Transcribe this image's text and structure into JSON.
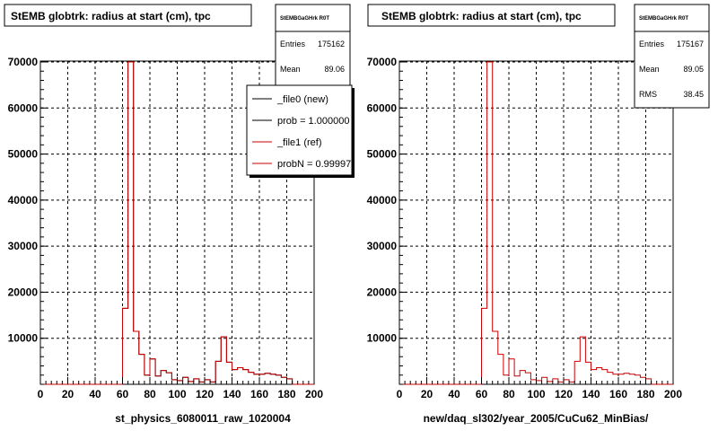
{
  "footer_text": "",
  "colors": {
    "new": "#000000",
    "ref": "#cc0000",
    "grid": "#000000"
  },
  "chart_data": [
    {
      "type": "histogram",
      "title": "StEMB globtrk: radius at start (cm), tpc",
      "xlabel": "st_physics_6080011_raw_1020004",
      "xlim": [
        0,
        200
      ],
      "ylim": [
        0,
        70000
      ],
      "xticks": [
        "0",
        "20",
        "40",
        "60",
        "80",
        "100",
        "120",
        "140",
        "160",
        "180",
        "200"
      ],
      "yticks": [
        "10000",
        "20000",
        "30000",
        "40000",
        "50000",
        "60000",
        "70000"
      ],
      "grid": true,
      "stats": {
        "name": "StEMBGaGHrk R0T",
        "entries_label": "Entries",
        "entries": "175162",
        "mean_label": "Mean",
        "mean": "89.06"
      },
      "legend": {
        "position": "top-right",
        "entries": [
          "_file0 (new)",
          "prob = 1.000000",
          "_file1 (ref)",
          "probN = 0.99997"
        ]
      },
      "bin_width": 4,
      "bin_edges_start": 0,
      "series": [
        {
          "name": "_file0 (new)",
          "color": "#000000",
          "values": [
            0,
            0,
            0,
            0,
            0,
            0,
            0,
            0,
            0,
            0,
            0,
            0,
            0,
            0,
            0,
            16500,
            70000,
            11500,
            6500,
            2000,
            5500,
            1800,
            3000,
            2500,
            1000,
            800,
            1500,
            600,
            1200,
            500,
            1000,
            500,
            5000,
            10300,
            4800,
            3200,
            3600,
            3200,
            2600,
            2200,
            2200,
            2400,
            2200,
            2000,
            1500,
            1200,
            0,
            0,
            0,
            0
          ]
        },
        {
          "name": "_file1 (ref)",
          "color": "#cc0000",
          "values": [
            0,
            0,
            0,
            0,
            0,
            0,
            0,
            0,
            0,
            0,
            0,
            0,
            0,
            0,
            0,
            16500,
            70000,
            11500,
            6500,
            2000,
            5500,
            1800,
            3000,
            2500,
            1000,
            800,
            1500,
            600,
            1200,
            500,
            1000,
            500,
            5000,
            10300,
            4800,
            3200,
            3600,
            3200,
            2600,
            2200,
            2200,
            2400,
            2200,
            2000,
            1500,
            1200,
            0,
            0,
            0,
            0
          ]
        }
      ]
    },
    {
      "type": "histogram",
      "title": "StEMB globtrk: radius at start (cm), tpc",
      "xlabel": "new/daq_sl302/year_2005/CuCu62_MinBias/",
      "xlim": [
        0,
        200
      ],
      "ylim": [
        0,
        70000
      ],
      "xticks": [
        "0",
        "20",
        "40",
        "60",
        "80",
        "100",
        "120",
        "140",
        "160",
        "180",
        "200"
      ],
      "yticks": [
        "10000",
        "20000",
        "30000",
        "40000",
        "50000",
        "60000",
        "70000"
      ],
      "grid": true,
      "stats": {
        "name": "StEMBGaGHrk R0T",
        "entries_label": "Entries",
        "entries": "175167",
        "mean_label": "Mean",
        "mean": "89.05",
        "rms_label": "RMS",
        "rms": "38.45"
      },
      "bin_width": 4,
      "bin_edges_start": 0,
      "series": [
        {
          "color": "#cc0000",
          "values": [
            0,
            0,
            0,
            0,
            0,
            0,
            0,
            0,
            0,
            0,
            0,
            0,
            0,
            0,
            0,
            16500,
            70000,
            11500,
            6500,
            2000,
            5500,
            1800,
            3000,
            2500,
            1000,
            800,
            1500,
            600,
            1200,
            500,
            1000,
            500,
            5000,
            10300,
            4800,
            3200,
            3600,
            3200,
            2600,
            2200,
            2200,
            2400,
            2200,
            2000,
            1500,
            1200,
            0,
            0,
            0,
            0
          ]
        }
      ]
    }
  ]
}
